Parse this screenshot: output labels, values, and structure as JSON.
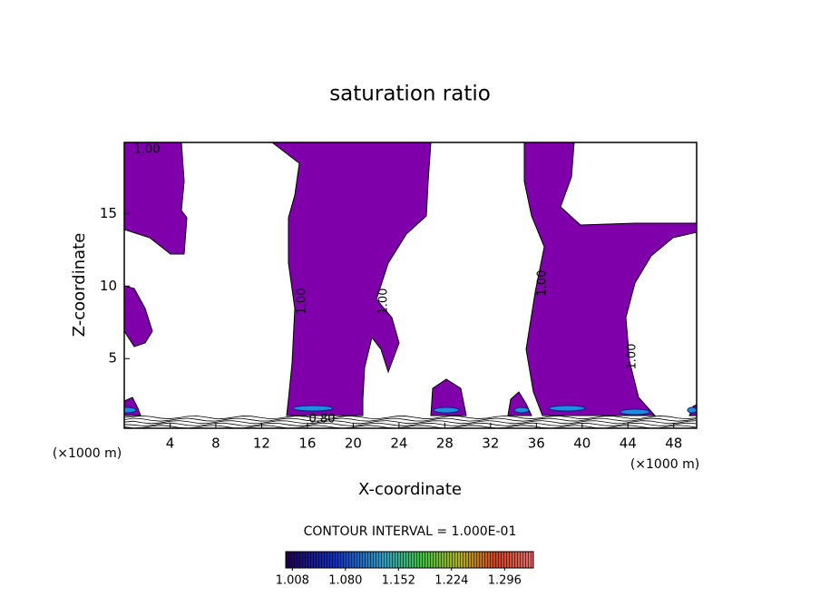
{
  "chart_data": {
    "type": "contour",
    "title": "saturation ratio",
    "x_label": "X-coordinate",
    "y_label": "Z-coordinate",
    "x_unit_left": "(×1000 m)",
    "x_unit_right": "(×1000 m)",
    "xlim": [
      0,
      50
    ],
    "ylim": [
      0.2,
      19.9
    ],
    "xticks": [
      4,
      8,
      12,
      16,
      20,
      24,
      28,
      32,
      36,
      40,
      44,
      48
    ],
    "yticks": [
      5,
      10,
      15
    ],
    "fill_level": {
      "value": 1.0,
      "color": "#7f00aa"
    },
    "contour_labels": [
      {
        "value": 1.0,
        "label": "1.00"
      },
      {
        "value": 1.0,
        "label": "1.00"
      },
      {
        "value": 1.0,
        "label": "1.00"
      },
      {
        "value": 1.0,
        "label": "1.00"
      },
      {
        "value": 1.0,
        "label": "1.00"
      },
      {
        "value": 0.8,
        "label": "0.80"
      }
    ],
    "contour_interval_text": "CONTOUR INTERVAL = 1.000E-01",
    "colorbar": {
      "clim": [
        0.999,
        1.335
      ],
      "ticks": [
        {
          "value": 1.008,
          "label": "1.008"
        },
        {
          "value": 1.08,
          "label": "1.080"
        },
        {
          "value": 1.152,
          "label": "1.152"
        },
        {
          "value": 1.224,
          "label": "1.224"
        },
        {
          "value": 1.296,
          "label": "1.296"
        }
      ]
    }
  }
}
